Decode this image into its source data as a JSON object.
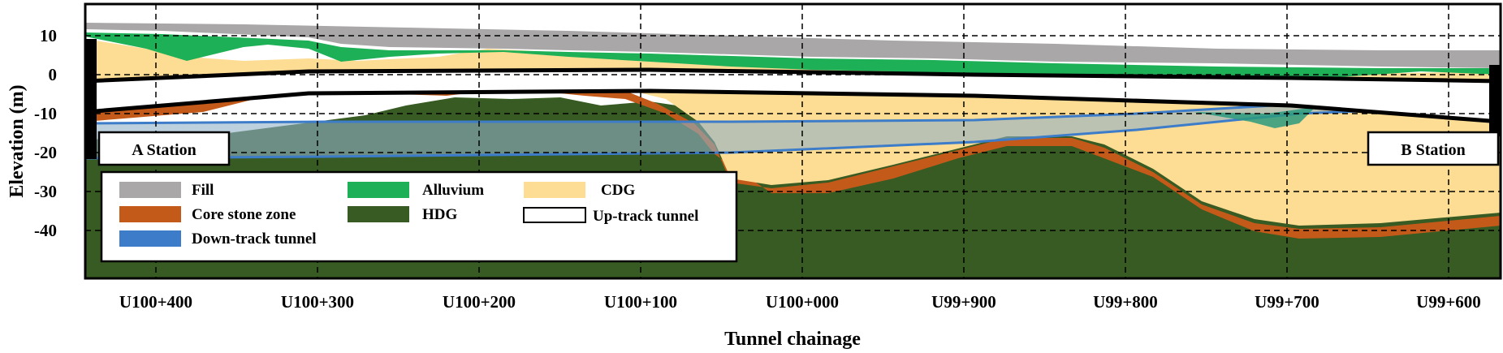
{
  "chart_data": {
    "type": "geological-section",
    "xlabel": "Tunnel chainage",
    "ylabel": "Elevation (m)",
    "x_ticks": [
      "U100+400",
      "U100+300",
      "U100+200",
      "U100+100",
      "U100+000",
      "U99+900",
      "U99+800",
      "U99+700",
      "U99+600"
    ],
    "y_ticks": [
      10,
      0,
      -10,
      -20,
      -30,
      -40
    ],
    "ylim": [
      -50,
      19
    ],
    "grid": true,
    "stations": [
      {
        "name": "A Station",
        "side": "left"
      },
      {
        "name": "B Station",
        "side": "right"
      }
    ],
    "legend": {
      "placement": "bottom-left",
      "entries": [
        {
          "label": "Fill",
          "color": "#a9a7a8"
        },
        {
          "label": "Alluvium",
          "color": "#1db057"
        },
        {
          "label": "CDG",
          "color": "#fddc94"
        },
        {
          "label": "Core stone zone",
          "color": "#c45a19"
        },
        {
          "label": "HDG",
          "color": "#375b22"
        },
        {
          "label": "Up-track tunnel",
          "color": "#ffffff"
        },
        {
          "label": "Down-track tunnel",
          "color": "#3d7cc9"
        }
      ]
    }
  }
}
